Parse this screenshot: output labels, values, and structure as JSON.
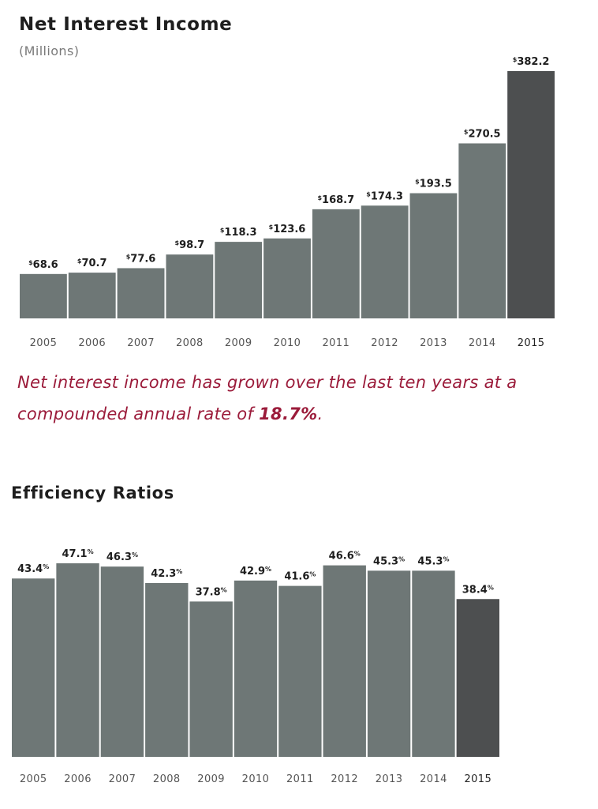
{
  "chart_data": [
    {
      "type": "bar",
      "title": "Net Interest Income",
      "subtitle": "(Millions)",
      "categories": [
        "2005",
        "2006",
        "2007",
        "2008",
        "2009",
        "2010",
        "2011",
        "2012",
        "2013",
        "2014",
        "2015"
      ],
      "values": [
        68.6,
        70.7,
        77.6,
        98.7,
        118.3,
        123.6,
        168.7,
        174.3,
        193.5,
        270.5,
        382.2
      ],
      "data_labels": [
        "$68.6",
        "$70.7",
        "$77.6",
        "$98.7",
        "$118.3",
        "$123.6",
        "$168.7",
        "$174.3",
        "$193.5",
        "$270.5",
        "$382.2"
      ],
      "value_prefix": "$",
      "ylim": [
        0,
        382.2
      ],
      "grid": false,
      "colors": {
        "bar": "#6e7776",
        "highlight": "#4d4f50"
      },
      "highlight_category": "2015"
    },
    {
      "type": "bar",
      "title": "Efficiency Ratios",
      "categories": [
        "2005",
        "2006",
        "2007",
        "2008",
        "2009",
        "2010",
        "2011",
        "2012",
        "2013",
        "2014",
        "2015"
      ],
      "values": [
        43.4,
        47.1,
        46.3,
        42.3,
        37.8,
        42.9,
        41.6,
        46.6,
        45.3,
        45.3,
        38.4
      ],
      "data_labels": [
        "43.4%",
        "47.1%",
        "46.3%",
        "42.3%",
        "37.8%",
        "42.9%",
        "41.6%",
        "46.6%",
        "45.3%",
        "45.3%",
        "38.4%"
      ],
      "value_suffix": "%",
      "ylim": [
        0,
        47.1
      ],
      "grid": false,
      "colors": {
        "bar": "#6e7776",
        "highlight": "#4d4f50"
      },
      "highlight_category": "2015"
    }
  ],
  "note": {
    "text_before": "Net interest income has grown over the last ten years at a compounded annual rate of ",
    "emphasis": "18.7%",
    "text_after": ".",
    "color": "#9b1b3a"
  }
}
